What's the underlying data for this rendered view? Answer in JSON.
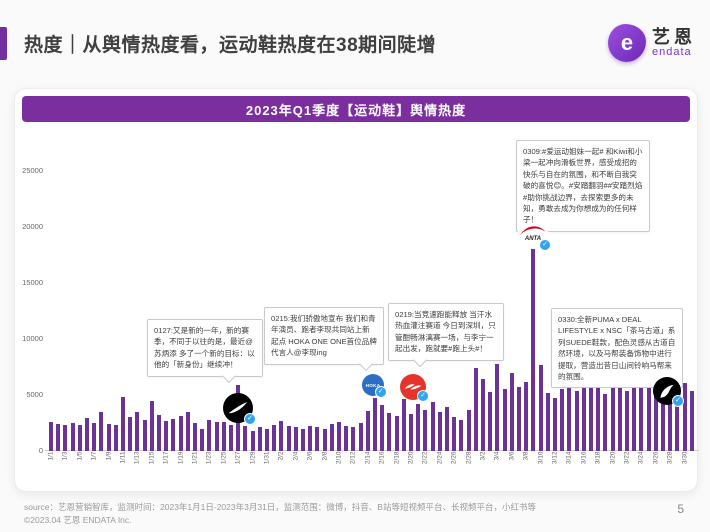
{
  "header": {
    "title": "热度｜从舆情热度看，运动鞋热度在38期间陡增",
    "logo": {
      "mark": "e",
      "brand": "艺恩",
      "sub": "endata"
    }
  },
  "chart_data": {
    "type": "bar",
    "title": "2023年Q1季度【运动鞋】舆情热度",
    "xlabel": "",
    "ylabel": "",
    "ylim": [
      0,
      25000
    ],
    "y_ticks": [
      0,
      5000,
      10000,
      15000,
      20000,
      25000
    ],
    "grid": false,
    "legend": false,
    "label_every": 2,
    "bar_color": "#6a3496",
    "dates": [
      "1/1",
      "1/2",
      "1/3",
      "1/4",
      "1/5",
      "1/6",
      "1/7",
      "1/8",
      "1/9",
      "1/10",
      "1/11",
      "1/12",
      "1/13",
      "1/14",
      "1/15",
      "1/16",
      "1/17",
      "1/18",
      "1/19",
      "1/20",
      "1/21",
      "1/22",
      "1/23",
      "1/24",
      "1/25",
      "1/26",
      "1/27",
      "1/28",
      "1/29",
      "1/30",
      "1/31",
      "2/1",
      "2/2",
      "2/3",
      "2/4",
      "2/5",
      "2/6",
      "2/7",
      "2/8",
      "2/9",
      "2/10",
      "2/11",
      "2/12",
      "2/13",
      "2/14",
      "2/15",
      "2/16",
      "2/17",
      "2/18",
      "2/19",
      "2/20",
      "2/21",
      "2/22",
      "2/23",
      "2/24",
      "2/25",
      "2/26",
      "2/27",
      "2/28",
      "3/1",
      "3/2",
      "3/3",
      "3/4",
      "3/5",
      "3/6",
      "3/7",
      "3/8",
      "3/9",
      "3/10",
      "3/11",
      "3/12",
      "3/13",
      "3/14",
      "3/15",
      "3/16",
      "3/17",
      "3/18",
      "3/19",
      "3/20",
      "3/21",
      "3/22",
      "3/23",
      "3/24",
      "3/25",
      "3/26",
      "3/27",
      "3/28",
      "3/29",
      "3/30",
      "3/31"
    ],
    "values": [
      2600,
      2450,
      2300,
      2500,
      2350,
      2950,
      2500,
      3500,
      2400,
      2300,
      4800,
      3000,
      3500,
      2800,
      4500,
      3200,
      2700,
      2900,
      3100,
      3500,
      2500,
      2000,
      2800,
      2600,
      2550,
      2300,
      5900,
      2200,
      1800,
      2100,
      2000,
      2300,
      2700,
      2200,
      2100,
      2000,
      2200,
      2100,
      2000,
      2400,
      2600,
      2200,
      2100,
      2500,
      3600,
      4700,
      4100,
      3400,
      3100,
      4600,
      3300,
      4200,
      3700,
      4400,
      3500,
      3900,
      3000,
      2800,
      3700,
      7400,
      6400,
      5300,
      7800,
      5500,
      7000,
      5700,
      6200,
      18000,
      7700,
      5200,
      4700,
      5500,
      6300,
      5400,
      6500,
      7100,
      5700,
      5100,
      5800,
      6500,
      5400,
      7200,
      6100,
      6600,
      5700,
      7900,
      6700,
      5100,
      6100,
      5400
    ],
    "annotations": [
      {
        "id": "0127",
        "brand": "Nike",
        "text": "0127:又是新的一年，新的赛季，不同于以往的是，最近@苏炳添 多了一个新的目标：以他的「新身份」继续冲！"
      },
      {
        "id": "0215",
        "brand": "HOKA",
        "text": "0215:我们骄傲地宣布 我们和青年演员、跑者李现共同站上新起点 HOKA ONE ONE首位品牌代言人@李现ing"
      },
      {
        "id": "0219",
        "brand": "Li-Ning",
        "text": "0219:当竞速跑能释放 当汗水热血灌注赛道 今日到深圳，只管酣畅淋漓赛一场，与李宁一起出发，跑就要#跑上头#！"
      },
      {
        "id": "0309",
        "brand": "ANTA",
        "text": "0309:#爱运动姐妹一起# 和Kiwi和小梁一起冲向滑板世界，感受成招的快乐与自在的氛围，和不断自我突破的喜悦😊。#安踏翻羽##安踏烈焰#助你挑战边界，去探索更多的未知，勇敢去成为你想成为的任何样子！"
      },
      {
        "id": "0330",
        "brand": "PUMA",
        "text": "0330:全新PUMA x DEAL LIFESTYLE x NSC「茶马古道」系列SUEDE鞋款，配色灵感从古道自然环境，以及马帮装备饰物中进行提取，营造出昔日山间铃响马帮来的氛围。"
      }
    ],
    "logo_labels": {
      "hoka_text": "HOKA",
      "anta_text": "ANTA"
    }
  },
  "footer": {
    "source": "source：艺恩营销智库，监测时间：2023年1月1日-2023年3月31日，监测范围：微博，抖音、B站等短视频平台、长视频平台，小红书等",
    "copyright": "©2023.04 艺恩 ENDATA Inc.",
    "page": "5"
  }
}
